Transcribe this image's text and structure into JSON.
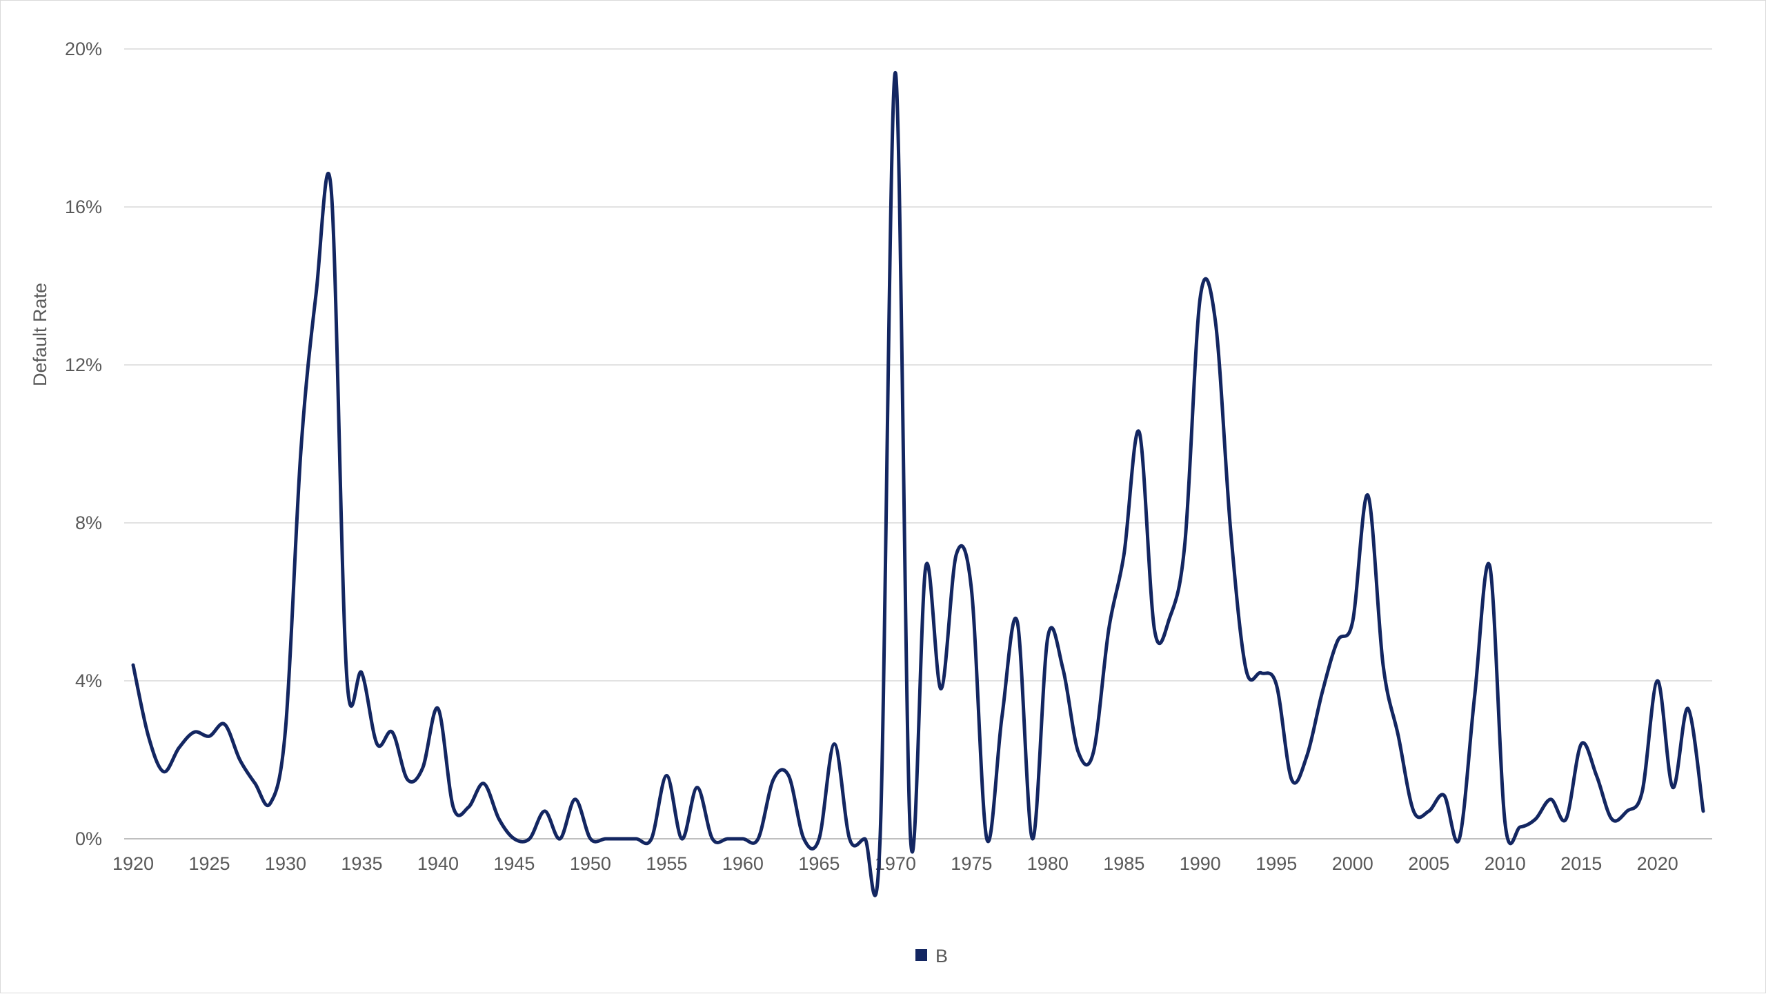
{
  "colors": {
    "series": "#132661",
    "grid": "#d9d9d9",
    "axis": "#bfbfbf",
    "text": "#595959"
  },
  "chart_data": {
    "type": "line",
    "title": "",
    "xlabel": "",
    "ylabel": "Default Rate",
    "xlim": [
      1920,
      2023
    ],
    "ylim": [
      0,
      20
    ],
    "y_ticks": [
      0,
      4,
      8,
      12,
      16,
      20
    ],
    "y_tick_labels": [
      "0%",
      "4%",
      "8%",
      "12%",
      "16%",
      "20%"
    ],
    "x_ticks": [
      1920,
      1925,
      1930,
      1935,
      1940,
      1945,
      1950,
      1955,
      1960,
      1965,
      1970,
      1975,
      1980,
      1985,
      1990,
      1995,
      2000,
      2005,
      2010,
      2015,
      2020
    ],
    "x_tick_labels": [
      "1920",
      "1925",
      "1930",
      "1935",
      "1940",
      "1945",
      "1950",
      "1955",
      "1960",
      "1965",
      "1970",
      "1975",
      "1980",
      "1985",
      "1990",
      "1995",
      "2000",
      "2005",
      "2010",
      "2015",
      "2020"
    ],
    "grid": "horizontal",
    "legend_position": "bottom",
    "smooth": true,
    "series": [
      {
        "name": "B",
        "x": [
          1920,
          1921,
          1922,
          1923,
          1924,
          1925,
          1926,
          1927,
          1928,
          1929,
          1930,
          1931,
          1932,
          1933,
          1934,
          1935,
          1936,
          1937,
          1938,
          1939,
          1940,
          1941,
          1942,
          1943,
          1944,
          1945,
          1946,
          1947,
          1948,
          1949,
          1950,
          1951,
          1952,
          1953,
          1954,
          1955,
          1956,
          1957,
          1958,
          1959,
          1960,
          1961,
          1962,
          1963,
          1964,
          1965,
          1966,
          1967,
          1968,
          1969,
          1970,
          1971,
          1972,
          1973,
          1974,
          1975,
          1976,
          1977,
          1978,
          1979,
          1980,
          1981,
          1982,
          1983,
          1984,
          1985,
          1986,
          1987,
          1988,
          1989,
          1990,
          1991,
          1992,
          1993,
          1994,
          1995,
          1996,
          1997,
          1998,
          1999,
          2000,
          2001,
          2002,
          2003,
          2004,
          2005,
          2006,
          2007,
          2008,
          2009,
          2010,
          2011,
          2012,
          2013,
          2014,
          2015,
          2016,
          2017,
          2018,
          2019,
          2020,
          2021,
          2022,
          2023
        ],
        "values": [
          4.4,
          2.6,
          1.7,
          2.3,
          2.7,
          2.6,
          2.9,
          2.0,
          1.4,
          0.9,
          2.8,
          9.8,
          13.8,
          16.4,
          4.2,
          4.2,
          2.4,
          2.7,
          1.5,
          1.8,
          3.3,
          0.8,
          0.8,
          1.4,
          0.5,
          0.0,
          0.0,
          0.7,
          0.0,
          1.0,
          0.0,
          0.0,
          0.0,
          0.0,
          0.0,
          1.6,
          0.0,
          1.3,
          0.0,
          0.0,
          0.0,
          0.0,
          1.5,
          1.6,
          0.0,
          0.0,
          2.4,
          0.0,
          0.0,
          0.0,
          19.4,
          0.0,
          6.9,
          3.8,
          7.2,
          6.3,
          0.0,
          3.1,
          5.5,
          0.0,
          5.1,
          4.3,
          2.2,
          2.2,
          5.3,
          7.2,
          10.3,
          5.3,
          5.6,
          7.5,
          13.7,
          13.1,
          7.8,
          4.3,
          4.2,
          3.9,
          1.5,
          2.1,
          3.7,
          5.0,
          5.5,
          8.7,
          4.4,
          2.6,
          0.7,
          0.7,
          1.1,
          0.0,
          3.6,
          6.9,
          0.4,
          0.3,
          0.5,
          1.0,
          0.5,
          2.4,
          1.6,
          0.5,
          0.7,
          1.2,
          4.0,
          1.3,
          3.3,
          0.7
        ]
      }
    ]
  }
}
